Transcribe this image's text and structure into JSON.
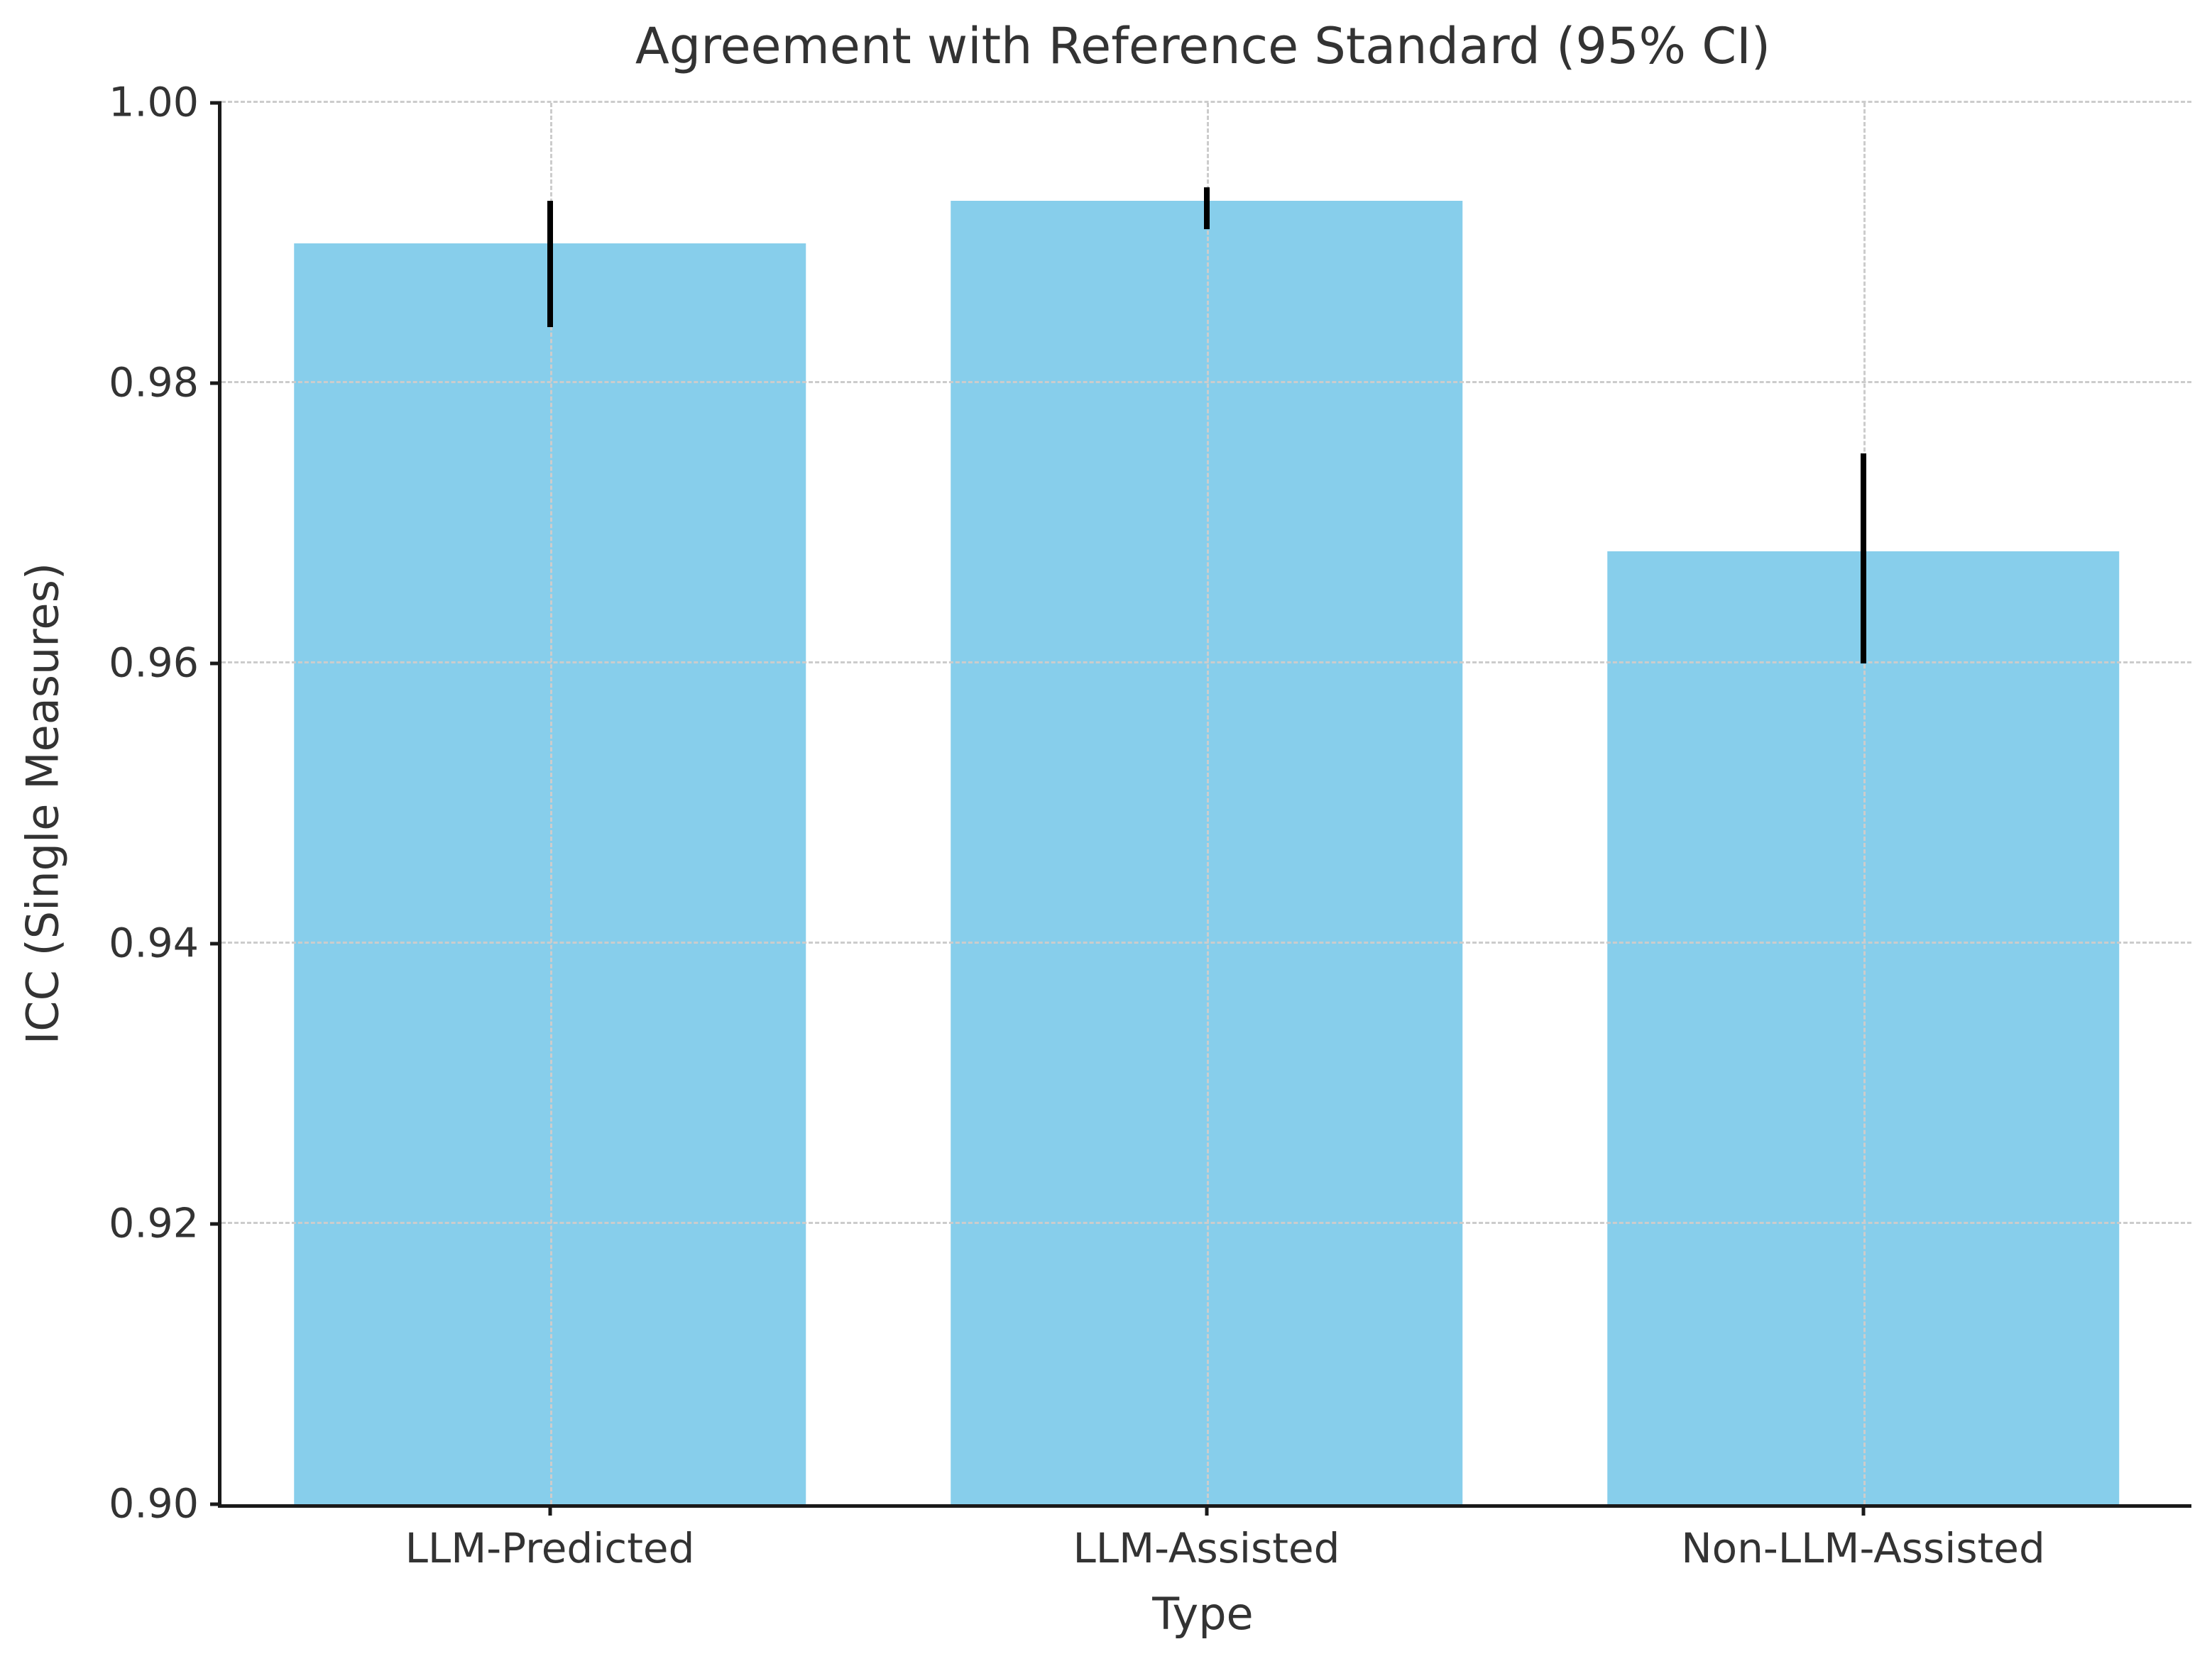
{
  "chart_data": {
    "type": "bar",
    "title": "Agreement with Reference Standard (95% CI)",
    "xlabel": "Type",
    "ylabel": "ICC (Single Measures)",
    "categories": [
      "LLM-Predicted",
      "LLM-Assisted",
      "Non-LLM-Assisted"
    ],
    "values": [
      0.99,
      0.993,
      0.968
    ],
    "error_bars": {
      "kind": "95% CI",
      "low": [
        0.984,
        0.991,
        0.96
      ],
      "high": [
        0.993,
        0.994,
        0.975
      ]
    },
    "ylim": [
      0.9,
      1.0
    ],
    "yticks": [
      0.9,
      0.92,
      0.94,
      0.96,
      0.98,
      1.0
    ],
    "ytick_labels": [
      "0.90",
      "0.92",
      "0.94",
      "0.96",
      "0.98",
      "1.00"
    ],
    "grid": true,
    "grid_style": "dashed",
    "legend": "none",
    "spines": [
      "left",
      "bottom"
    ],
    "bar_color": "#87CEEB",
    "error_color": "#000000",
    "grid_color": "#cccccc",
    "spine_color": "#1a1a1a",
    "text_color": "#333333",
    "bar_width_frac": 0.26
  }
}
